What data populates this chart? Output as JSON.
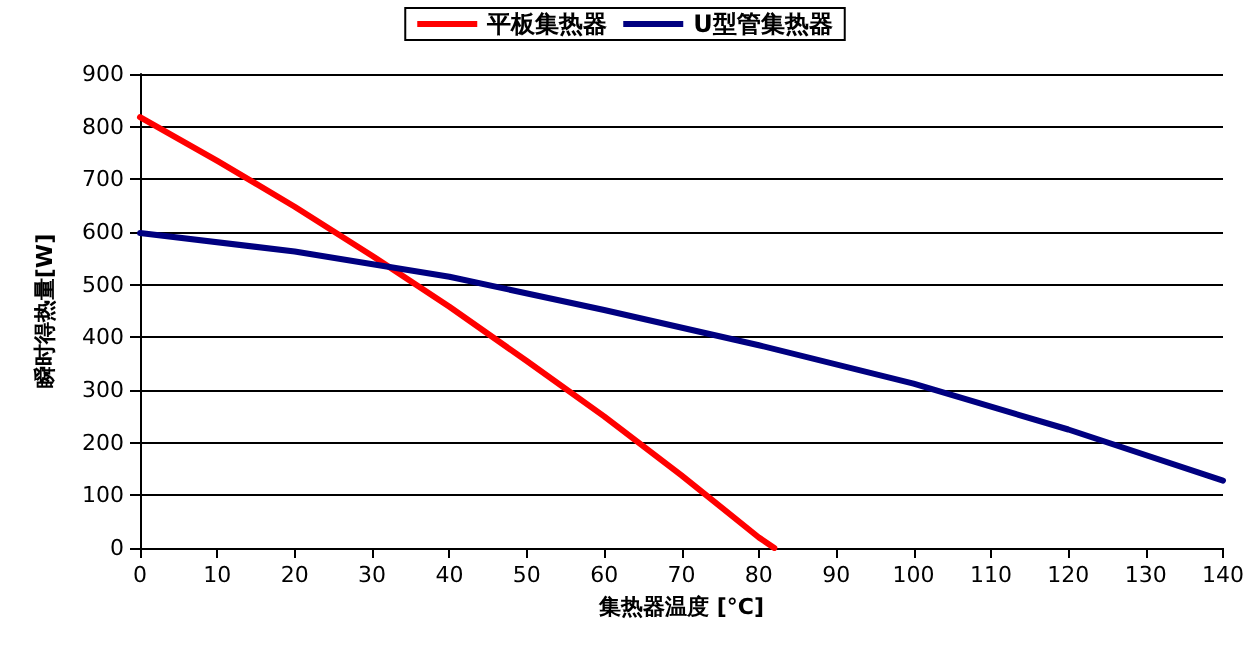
{
  "chart_data": {
    "type": "line",
    "xlabel": "集热器温度 [°C]",
    "ylabel": "瞬时得热量[W]",
    "xlim": [
      0,
      140
    ],
    "xticks": [
      0,
      10,
      20,
      30,
      40,
      50,
      60,
      70,
      80,
      90,
      100,
      110,
      120,
      130,
      140
    ],
    "ylim": [
      0,
      900
    ],
    "yticks": [
      0,
      100,
      200,
      300,
      400,
      500,
      600,
      700,
      800,
      900
    ],
    "grid": "y",
    "legend": "top",
    "marker": "none",
    "line_style": "solid",
    "series": [
      {
        "name": "平板集热器",
        "color": "#ff0000",
        "x": [
          0,
          10,
          20,
          30,
          40,
          50,
          60,
          70,
          80,
          82
        ],
        "values": [
          818,
          735,
          648,
          555,
          458,
          355,
          250,
          138,
          20,
          0
        ]
      },
      {
        "name": "U型管集热器",
        "color": "#000080",
        "x": [
          0,
          20,
          40,
          60,
          80,
          100,
          120,
          140
        ],
        "values": [
          598,
          563,
          515,
          452,
          385,
          312,
          225,
          128
        ]
      }
    ]
  }
}
